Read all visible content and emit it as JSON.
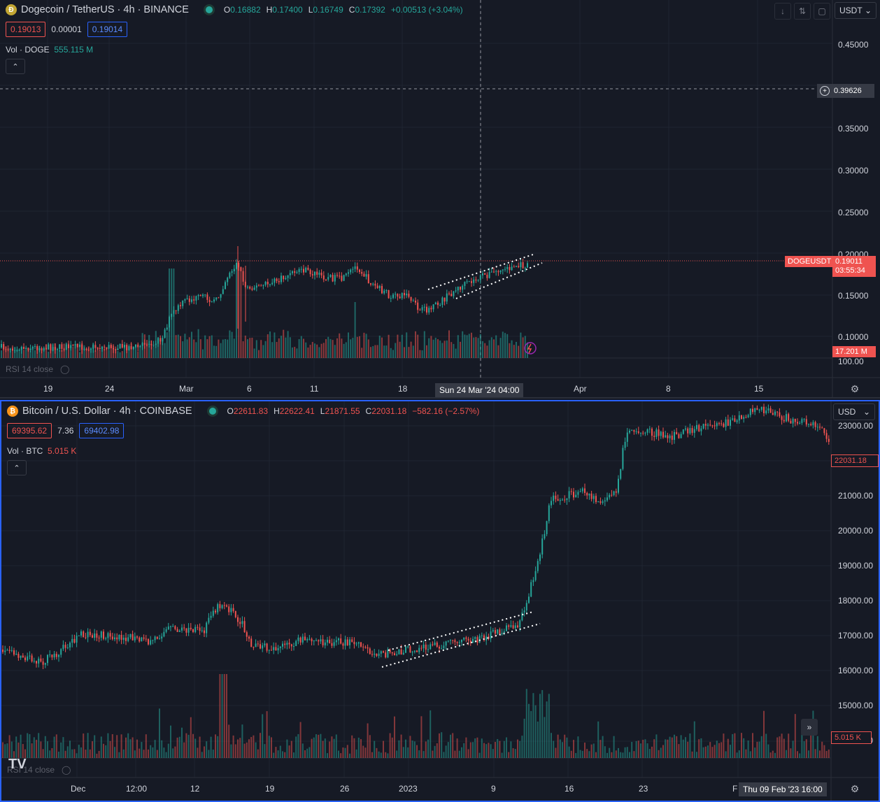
{
  "top": {
    "symbol_title": "Dogecoin / TetherUS · 4h · BINANCE",
    "ohlc": {
      "o_label": "O",
      "o": "0.16882",
      "h_label": "H",
      "h": "0.17400",
      "l_label": "L",
      "l": "0.16749",
      "c_label": "C",
      "c": "0.17392",
      "change": "+0.00513 (+3.04%)"
    },
    "bid": "0.19013",
    "spread": "0.00001",
    "ask": "0.19014",
    "vol_label": "Vol · DOGE",
    "vol_value": "555.115 M",
    "rsi_label": "RSI 14 close",
    "currency": "USDT",
    "price_ticks": [
      "0.45000",
      "0.35000",
      "0.30000",
      "0.25000",
      "0.20000",
      "0.15000",
      "0.10000"
    ],
    "crosshair_price": "0.39626",
    "last_tag_label": "DOGEUSDT",
    "last_price": "0.19011",
    "countdown": "03:55:34",
    "vol_tag": "17.201 M",
    "rsi_value": "100.00",
    "time_ticks": [
      "19",
      "24",
      "Mar",
      "6",
      "11",
      "18",
      "Apr",
      "8",
      "15"
    ],
    "crosshair_time": "Sun 24 Mar '24   04:00",
    "colors": {
      "up": "#26a69a",
      "down": "#ef5350",
      "bg": "#161a25"
    }
  },
  "bottom": {
    "symbol_title": "Bitcoin / U.S. Dollar · 4h · COINBASE",
    "ohlc": {
      "o_label": "O",
      "o": "22611.83",
      "h_label": "H",
      "h": "22622.41",
      "l_label": "L",
      "l": "21871.55",
      "c_label": "C",
      "c": "22031.18",
      "change": "−582.16 (−2.57%)"
    },
    "bid": "69395.62",
    "spread": "7.36",
    "ask": "69402.98",
    "vol_label": "Vol · BTC",
    "vol_value": "5.015 K",
    "rsi_label": "RSI 14 close",
    "currency": "USD",
    "price_ticks": [
      "23000.00",
      "21000.00",
      "20000.00",
      "19000.00",
      "18000.00",
      "17000.00",
      "16000.00",
      "15000.00",
      "14000.00"
    ],
    "last_price": "22031.18",
    "vol_tag": "5.015 K",
    "time_ticks": [
      "Dec",
      "12:00",
      "12",
      "19",
      "26",
      "2023",
      "9",
      "16",
      "23",
      "F"
    ],
    "crosshair_time": "Thu 09 Feb '23   16:00"
  }
}
